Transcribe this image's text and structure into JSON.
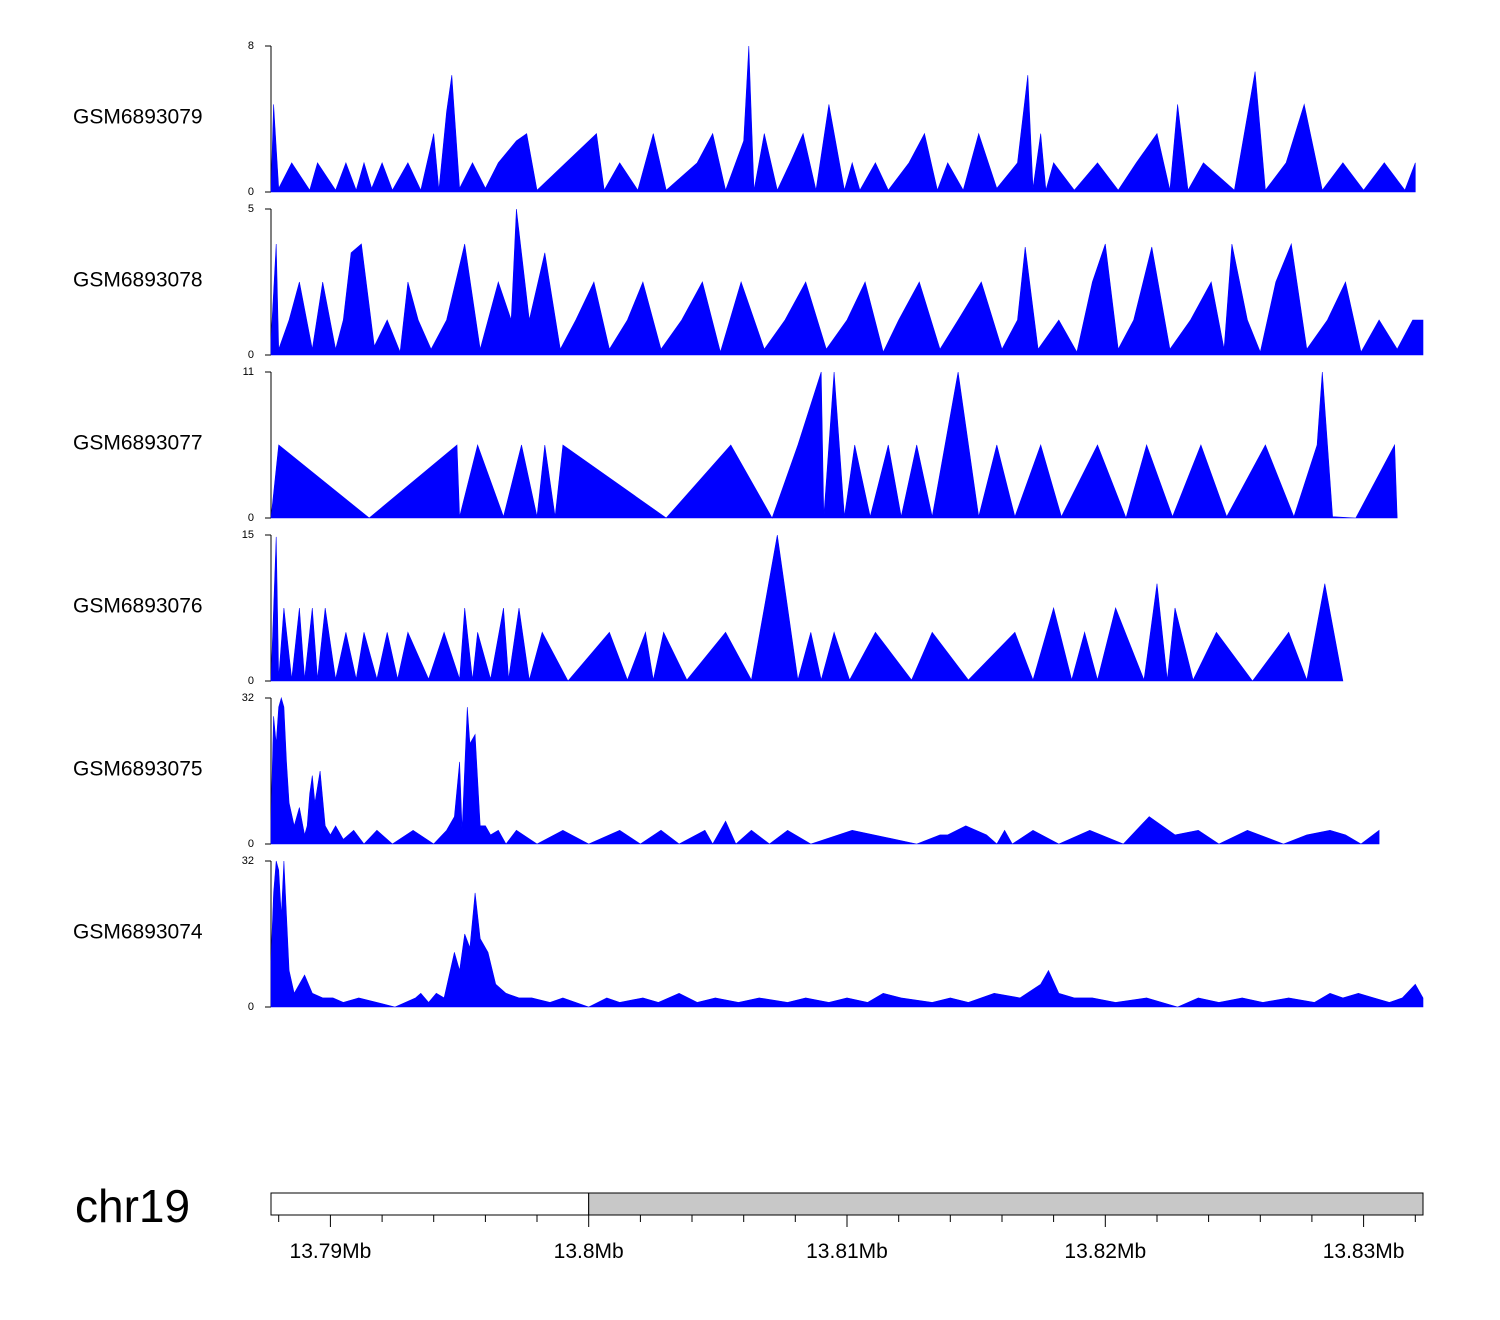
{
  "chart_data": {
    "type": "area",
    "title": "",
    "xlabel": "",
    "color": "#0000ff",
    "chromosome": "chr19",
    "xlim": [
      13.7877,
      13.8323
    ],
    "highlight_start": 13.8,
    "x_ticks": [
      13.79,
      13.8,
      13.81,
      13.82,
      13.83
    ],
    "x_tick_labels": [
      "13.79Mb",
      "13.8Mb",
      "13.81Mb",
      "13.82Mb",
      "13.83Mb"
    ],
    "tracks": [
      {
        "name": "GSM6893079",
        "ylim": [
          0,
          8
        ],
        "y_tick_labels": [
          "0",
          "8"
        ],
        "x": [
          13.7877,
          13.7878,
          13.788,
          13.7885,
          13.7892,
          13.7895,
          13.7902,
          13.7906,
          13.791,
          13.7913,
          13.7916,
          13.792,
          13.7924,
          13.793,
          13.7935,
          13.794,
          13.7942,
          13.7945,
          13.7947,
          13.795,
          13.7955,
          13.796,
          13.7965,
          13.7972,
          13.7976,
          13.798,
          13.8003,
          13.8006,
          13.8012,
          13.8019,
          13.8025,
          13.803,
          13.8042,
          13.8048,
          13.8053,
          13.806,
          13.8062,
          13.8064,
          13.8068,
          13.8073,
          13.8078,
          13.8083,
          13.8088,
          13.8093,
          13.8099,
          13.8102,
          13.8105,
          13.8111,
          13.8116,
          13.8124,
          13.813,
          13.8135,
          13.8139,
          13.8145,
          13.8151,
          13.8158,
          13.8166,
          13.817,
          13.8172,
          13.8175,
          13.8177,
          13.818,
          13.8188,
          13.8197,
          13.8205,
          13.8212,
          13.822,
          13.8225,
          13.8228,
          13.8232,
          13.8238,
          13.825,
          13.8258,
          13.8262,
          13.827,
          13.8277,
          13.8284,
          13.8292,
          13.83,
          13.8308,
          13.8316,
          13.832
        ],
        "y": [
          0,
          4.8,
          0.2,
          1.6,
          0.1,
          1.6,
          0.1,
          1.6,
          0.1,
          1.6,
          0.2,
          1.6,
          0.1,
          1.6,
          0.1,
          3.2,
          0.1,
          4.4,
          6.4,
          0.2,
          1.6,
          0.2,
          1.6,
          2.8,
          3.2,
          0.1,
          3.2,
          0.1,
          1.6,
          0.1,
          3.2,
          0.1,
          1.6,
          3.2,
          0.1,
          2.8,
          8.0,
          0.1,
          3.2,
          0.1,
          1.6,
          3.2,
          0.1,
          4.8,
          0.1,
          1.6,
          0.1,
          1.6,
          0.1,
          1.6,
          3.2,
          0.1,
          1.6,
          0.1,
          3.2,
          0.2,
          1.6,
          6.4,
          0.2,
          3.2,
          0.1,
          1.6,
          0.1,
          1.6,
          0.1,
          1.6,
          3.2,
          0.1,
          4.8,
          0.1,
          1.6,
          0.1,
          6.6,
          0.1,
          1.6,
          4.8,
          0.1,
          1.6,
          0.1,
          1.6,
          0.1,
          1.6
        ]
      },
      {
        "name": "GSM6893078",
        "ylim": [
          0,
          5
        ],
        "y_tick_labels": [
          "0",
          "5"
        ],
        "x": [
          13.7877,
          13.7879,
          13.788,
          13.7884,
          13.7888,
          13.7893,
          13.7897,
          13.7902,
          13.7905,
          13.7908,
          13.7912,
          13.7917,
          13.7922,
          13.7927,
          13.793,
          13.7934,
          13.7939,
          13.7945,
          13.7952,
          13.7958,
          13.7965,
          13.797,
          13.7972,
          13.7977,
          13.7983,
          13.7989,
          13.7995,
          13.8002,
          13.8008,
          13.8015,
          13.8021,
          13.8028,
          13.8036,
          13.8044,
          13.8051,
          13.8059,
          13.8068,
          13.8076,
          13.8084,
          13.8092,
          13.81,
          13.8107,
          13.8114,
          13.812,
          13.8128,
          13.8136,
          13.8143,
          13.8152,
          13.816,
          13.8166,
          13.8169,
          13.8174,
          13.8182,
          13.8189,
          13.8195,
          13.82,
          13.8205,
          13.8211,
          13.8218,
          13.8225,
          13.8233,
          13.8241,
          13.8246,
          13.8249,
          13.8255,
          13.826,
          13.8266,
          13.8272,
          13.8278,
          13.8286,
          13.8293,
          13.8299,
          13.8306,
          13.8313,
          13.8319,
          13.8323
        ],
        "y": [
          0.5,
          3.8,
          0.2,
          1.2,
          2.5,
          0.2,
          2.5,
          0.2,
          1.2,
          3.5,
          3.8,
          0.3,
          1.2,
          0.1,
          2.5,
          1.2,
          0.2,
          1.2,
          3.8,
          0.2,
          2.5,
          1.2,
          5.0,
          1.2,
          3.5,
          0.2,
          1.2,
          2.5,
          0.2,
          1.2,
          2.5,
          0.2,
          1.2,
          2.5,
          0.1,
          2.5,
          0.2,
          1.2,
          2.5,
          0.2,
          1.2,
          2.5,
          0.1,
          1.2,
          2.5,
          0.2,
          1.2,
          2.5,
          0.2,
          1.2,
          3.7,
          0.2,
          1.2,
          0.1,
          2.5,
          3.8,
          0.2,
          1.2,
          3.7,
          0.2,
          1.2,
          2.5,
          0.2,
          3.8,
          1.2,
          0.1,
          2.5,
          3.8,
          0.2,
          1.2,
          2.5,
          0.1,
          1.2,
          0.2,
          1.2,
          1.2
        ]
      },
      {
        "name": "GSM6893077",
        "ylim": [
          0,
          11
        ],
        "y_tick_labels": [
          "0",
          "11"
        ],
        "x": [
          13.7877,
          13.788,
          13.7915,
          13.7949,
          13.795,
          13.7957,
          13.7967,
          13.7974,
          13.798,
          13.7983,
          13.7987,
          13.799,
          13.803,
          13.8055,
          13.8071,
          13.8081,
          13.809,
          13.8091,
          13.8095,
          13.8099,
          13.8103,
          13.8109,
          13.8116,
          13.8121,
          13.8127,
          13.8133,
          13.8143,
          13.8151,
          13.8158,
          13.8165,
          13.8175,
          13.8183,
          13.8197,
          13.8208,
          13.8216,
          13.8226,
          13.8237,
          13.8247,
          13.8262,
          13.8273,
          13.8282,
          13.8284,
          13.8288,
          13.8297,
          13.8312,
          13.8313
        ],
        "y": [
          0,
          5.5,
          0,
          5.5,
          0.1,
          5.5,
          0.1,
          5.5,
          0.1,
          5.5,
          0.1,
          5.5,
          0,
          5.5,
          0,
          5.5,
          11,
          0.1,
          11,
          0.1,
          5.5,
          0.1,
          5.5,
          0.1,
          5.5,
          0.1,
          11,
          0.1,
          5.5,
          0.1,
          5.5,
          0.1,
          5.5,
          0,
          5.5,
          0.1,
          5.5,
          0.1,
          5.5,
          0.1,
          5.5,
          11,
          0.1,
          0,
          5.5,
          0
        ]
      },
      {
        "name": "GSM6893076",
        "ylim": [
          0,
          15
        ],
        "y_tick_labels": [
          "0",
          "15"
        ],
        "x": [
          13.7877,
          13.7879,
          13.788,
          13.7882,
          13.7885,
          13.7888,
          13.789,
          13.7893,
          13.7895,
          13.7898,
          13.7902,
          13.7906,
          13.791,
          13.7913,
          13.7918,
          13.7922,
          13.7926,
          13.793,
          13.7938,
          13.7944,
          13.795,
          13.7952,
          13.7955,
          13.7957,
          13.7962,
          13.7967,
          13.7969,
          13.7973,
          13.7977,
          13.7982,
          13.7992,
          13.8008,
          13.8015,
          13.8022,
          13.8025,
          13.8029,
          13.8038,
          13.8053,
          13.8063,
          13.8073,
          13.8081,
          13.8086,
          13.809,
          13.8095,
          13.8101,
          13.8111,
          13.8125,
          13.8133,
          13.8147,
          13.8165,
          13.8172,
          13.818,
          13.8187,
          13.8192,
          13.8197,
          13.8204,
          13.8215,
          13.822,
          13.8224,
          13.8227,
          13.8234,
          13.8243,
          13.8257,
          13.8271,
          13.8278,
          13.8285,
          13.8292
        ],
        "y": [
          0,
          14.8,
          0.3,
          7.5,
          0.2,
          7.5,
          0.2,
          7.5,
          0.2,
          7.5,
          0.2,
          5.0,
          0.2,
          5.0,
          0.2,
          5.0,
          0.2,
          5.0,
          0.2,
          5.0,
          0.2,
          7.5,
          0.1,
          5.0,
          0.2,
          7.5,
          0.2,
          7.5,
          0.1,
          5.0,
          0,
          5.0,
          0.1,
          5.0,
          0.1,
          5.0,
          0.1,
          5.0,
          0.1,
          15.0,
          0.1,
          5.0,
          0.1,
          5.0,
          0.1,
          5.0,
          0.1,
          5.0,
          0.1,
          5.0,
          0.1,
          7.5,
          0.1,
          5.0,
          0.1,
          7.5,
          0.1,
          10.0,
          0.1,
          7.5,
          0.1,
          5.0,
          0,
          5.0,
          0.1,
          10.0,
          0
        ]
      },
      {
        "name": "GSM6893075",
        "ylim": [
          0,
          32
        ],
        "y_tick_labels": [
          "0",
          "32"
        ],
        "x": [
          13.7877,
          13.7878,
          13.7879,
          13.788,
          13.7881,
          13.7882,
          13.7883,
          13.7884,
          13.7886,
          13.7888,
          13.789,
          13.7891,
          13.7892,
          13.7893,
          13.7894,
          13.7896,
          13.7898,
          13.79,
          13.7902,
          13.7905,
          13.7909,
          13.7913,
          13.7918,
          13.7924,
          13.7932,
          13.794,
          13.7945,
          13.7948,
          13.795,
          13.7951,
          13.7953,
          13.7954,
          13.7956,
          13.7958,
          13.796,
          13.7962,
          13.7965,
          13.7968,
          13.7972,
          13.798,
          13.799,
          13.8,
          13.8012,
          13.802,
          13.8028,
          13.8035,
          13.8045,
          13.8048,
          13.8053,
          13.8057,
          13.8063,
          13.807,
          13.8077,
          13.8086,
          13.8102,
          13.8127,
          13.8136,
          13.8139,
          13.8146,
          13.8154,
          13.8158,
          13.8161,
          13.8164,
          13.8172,
          13.8182,
          13.8194,
          13.8207,
          13.8217,
          13.8227,
          13.8236,
          13.8244,
          13.8255,
          13.8269,
          13.8278,
          13.8287,
          13.8293,
          13.8299,
          13.8306
        ],
        "y": [
          5,
          28,
          22,
          30,
          32,
          30,
          18,
          9,
          4,
          8,
          2,
          4,
          11,
          15,
          9,
          16,
          4,
          2,
          4,
          1,
          3,
          0,
          3,
          0,
          3,
          0,
          3,
          6,
          18,
          3,
          30,
          22,
          24,
          4,
          4,
          2,
          3,
          0,
          3,
          0,
          3,
          0,
          3,
          0,
          3,
          0,
          3,
          0,
          5,
          0,
          3,
          0,
          3,
          0,
          3,
          0,
          2,
          2,
          4,
          2,
          0,
          3,
          0,
          3,
          0,
          3,
          0,
          6,
          2,
          3,
          0,
          3,
          0,
          2,
          3,
          2,
          0,
          3
        ]
      },
      {
        "name": "GSM6893074",
        "ylim": [
          0,
          32
        ],
        "y_tick_labels": [
          "0",
          "32"
        ],
        "x": [
          13.7877,
          13.7878,
          13.7879,
          13.788,
          13.7881,
          13.7882,
          13.7884,
          13.7886,
          13.7888,
          13.789,
          13.7893,
          13.7897,
          13.7901,
          13.7905,
          13.7911,
          13.7918,
          13.7925,
          13.7933,
          13.7935,
          13.7938,
          13.7941,
          13.7944,
          13.7948,
          13.795,
          13.7952,
          13.7954,
          13.7956,
          13.7958,
          13.7961,
          13.7964,
          13.7968,
          13.7973,
          13.7978,
          13.7985,
          13.799,
          13.8,
          13.8007,
          13.8012,
          13.8021,
          13.8027,
          13.8035,
          13.8042,
          13.8049,
          13.8058,
          13.8066,
          13.8077,
          13.8084,
          13.8093,
          13.81,
          13.8108,
          13.8114,
          13.8121,
          13.8133,
          13.814,
          13.8147,
          13.8157,
          13.8167,
          13.8175,
          13.8178,
          13.8182,
          13.8188,
          13.8195,
          13.8204,
          13.8216,
          13.8228,
          13.8236,
          13.8244,
          13.8253,
          13.8261,
          13.8271,
          13.8281,
          13.8287,
          13.8292,
          13.8298,
          13.8304,
          13.831,
          13.8315,
          13.832,
          13.8323
        ],
        "y": [
          10,
          25,
          32,
          30,
          20,
          32,
          8,
          3,
          5,
          7,
          3,
          2,
          2,
          1,
          2,
          1,
          0,
          2,
          3,
          1,
          3,
          2,
          12,
          8,
          16,
          13,
          25,
          15,
          12,
          5,
          3,
          2,
          2,
          1,
          2,
          0,
          2,
          1,
          2,
          1,
          3,
          1,
          2,
          1,
          2,
          1,
          2,
          1,
          2,
          1,
          3,
          2,
          1,
          2,
          1,
          3,
          2,
          5,
          8,
          3,
          2,
          2,
          1,
          2,
          0,
          2,
          1,
          2,
          1,
          2,
          1,
          3,
          2,
          3,
          2,
          1,
          2,
          5,
          2
        ]
      }
    ]
  }
}
